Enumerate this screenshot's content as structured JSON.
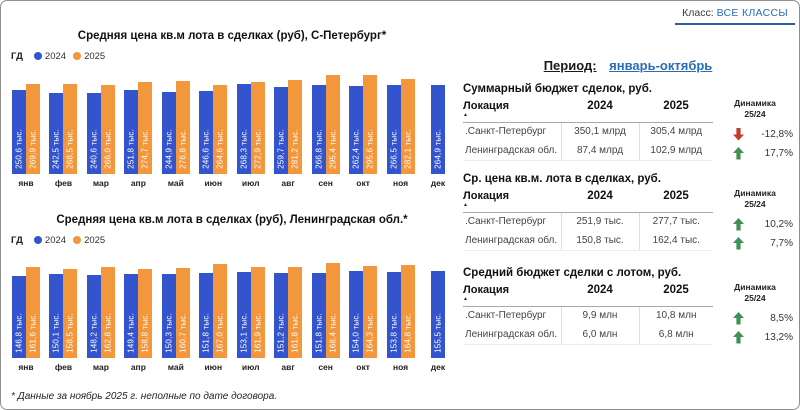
{
  "header": {
    "class_label": "Класс:",
    "class_value": "ВСЕ КЛАССЫ",
    "period_label": "Период:",
    "period_value": "январь-октябрь"
  },
  "colors": {
    "bar_2024_blue": "#3354CC",
    "bar_2025_orange": "#F2973B",
    "link_blue": "#2B6CB5",
    "underline_blue": "#2D5E9E",
    "up_green": "#3E9150",
    "down_red": "#C43B2C"
  },
  "chart_data": [
    {
      "type": "bar",
      "title": "Средняя цена кв.м  лота в сделках (руб), С-Петербург*",
      "legend_prefix": "ГД",
      "legend_position": "top-left",
      "grid": false,
      "categories": [
        "янв",
        "фев",
        "мар",
        "апр",
        "май",
        "июн",
        "июл",
        "авг",
        "сен",
        "окт",
        "ноя",
        "дек"
      ],
      "series": [
        {
          "name": "2024",
          "color": "#3354CC",
          "values": [
            250.6,
            242.5,
            240.6,
            251.8,
            244.9,
            246.6,
            268.3,
            259.7,
            266.8,
            262.4,
            266.5,
            264.9
          ]
        },
        {
          "name": "2025",
          "color": "#F2973B",
          "values": [
            269.9,
            268.5,
            266.0,
            274.7,
            276.8,
            264.6,
            272.9,
            281.2,
            295.4,
            295.6,
            282.1,
            null
          ]
        }
      ],
      "value_label_suffix": " тыс.",
      "ylim": [
        0,
        310
      ]
    },
    {
      "type": "bar",
      "title": "Средняя цена кв.м  лота в сделках (руб), Ленинградская обл.*",
      "legend_prefix": "ГД",
      "legend_position": "top-left",
      "grid": false,
      "categories": [
        "янв",
        "фев",
        "мар",
        "апр",
        "май",
        "июн",
        "июл",
        "авг",
        "сен",
        "окт",
        "ноя",
        "дек"
      ],
      "series": [
        {
          "name": "2024",
          "color": "#3354CC",
          "values": [
            146.8,
            150.1,
            148.2,
            149.4,
            150.3,
            151.8,
            153.1,
            151.2,
            151.8,
            154.0,
            153.8,
            155.5
          ]
        },
        {
          "name": "2025",
          "color": "#F2973B",
          "values": [
            161.6,
            158.5,
            162.8,
            158.8,
            160.7,
            167.0,
            161.9,
            161.8,
            168.4,
            164.3,
            164.8,
            null
          ]
        }
      ],
      "value_label_suffix": " тыс.",
      "ylim": [
        0,
        185
      ]
    }
  ],
  "tables": [
    {
      "title": "Суммарный бюджет сделок, руб.",
      "columns": [
        "Локация",
        "2024",
        "2025"
      ],
      "dynamics_header_line1": "Динамика",
      "dynamics_header_line2": "25/24",
      "rows": [
        {
          "location": ".Санкт-Петербург",
          "y2024": "350,1 млрд",
          "y2025": "305,4 млрд",
          "direction": "down",
          "change": "-12,8%"
        },
        {
          "location": "Ленинградская обл.",
          "y2024": "87,4 млрд",
          "y2025": "102,9 млрд",
          "direction": "up",
          "change": "17,7%"
        }
      ]
    },
    {
      "title": "Ср. цена кв.м. лота в сделках, руб.",
      "columns": [
        "Локация",
        "2024",
        "2025"
      ],
      "dynamics_header_line1": "Динамика",
      "dynamics_header_line2": "25/24",
      "rows": [
        {
          "location": ".Санкт-Петербург",
          "y2024": "251,9 тыс.",
          "y2025": "277,7 тыс.",
          "direction": "up",
          "change": "10,2%"
        },
        {
          "location": "Ленинградская обл.",
          "y2024": "150,8 тыс.",
          "y2025": "162,4 тыс.",
          "direction": "up",
          "change": "7,7%"
        }
      ]
    },
    {
      "title": "Средний бюджет сделки с лотом, руб.",
      "columns": [
        "Локация",
        "2024",
        "2025"
      ],
      "dynamics_header_line1": "Динамика",
      "dynamics_header_line2": "25/24",
      "rows": [
        {
          "location": ".Санкт-Петербург",
          "y2024": "9,9 млн",
          "y2025": "10,8 млн",
          "direction": "up",
          "change": "8,5%"
        },
        {
          "location": "Ленинградская обл.",
          "y2024": "6,0 млн",
          "y2025": "6,8 млн",
          "direction": "up",
          "change": "13,2%"
        }
      ]
    }
  ],
  "footnote": "* Данные за ноябрь 2025 г. неполные по дате договора."
}
